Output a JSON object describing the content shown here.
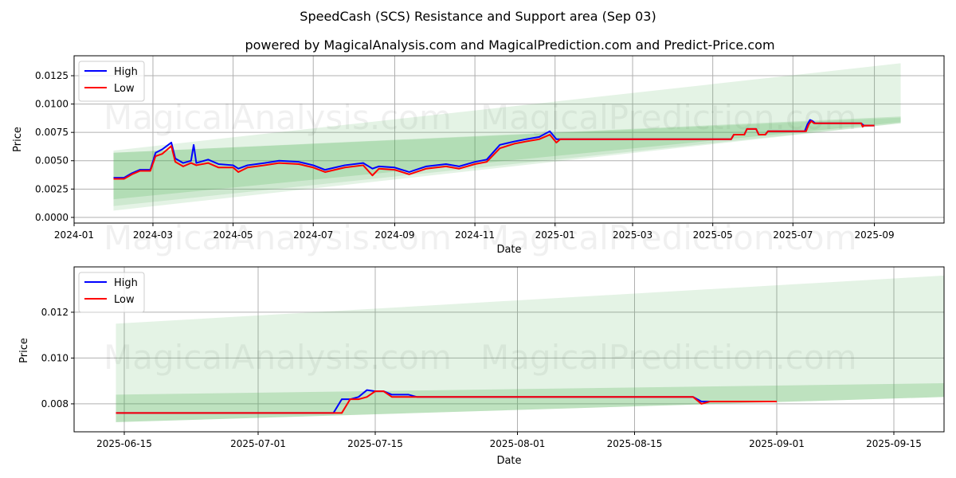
{
  "title": "SpeedCash (SCS) Resistance and Support area (Sep 03)",
  "subtitle": "powered by MagicalAnalysis.com and MagicalPrediction.com and Predict-Price.com",
  "watermarks": [
    "MagicalAnalysis.com",
    "MagicalPrediction.com"
  ],
  "colors": {
    "high": "#0000ff",
    "low": "#ff0000",
    "band": "#4caf50"
  },
  "chart_data": [
    {
      "type": "line",
      "xlabel": "Date",
      "ylabel": "Price",
      "xlim": [
        "2024-01-01",
        "2025-10-24"
      ],
      "ylim": [
        -0.0005,
        0.01426
      ],
      "xticks": [
        "2024-01",
        "2024-03",
        "2024-05",
        "2024-07",
        "2024-09",
        "2024-11",
        "2025-01",
        "2025-03",
        "2025-05",
        "2025-07",
        "2025-09"
      ],
      "yticks": [
        0,
        0.0025,
        0.005,
        0.0075,
        0.01,
        0.0125
      ],
      "ytick_labels": [
        "0.0000",
        "0.0025",
        "0.0050",
        "0.0075",
        "0.0100",
        "0.0125"
      ],
      "legend": {
        "position": "top-left",
        "entries": [
          "High",
          "Low"
        ]
      },
      "grid": true,
      "bands": [
        {
          "x": [
            "2024-01-31",
            "2025-09-21"
          ],
          "upper": [
            0.0059,
            0.0136
          ],
          "lower": [
            0.0006,
            0.0083
          ],
          "opacity": 0.15
        },
        {
          "x": [
            "2024-01-31",
            "2025-09-21"
          ],
          "upper": [
            0.0057,
            0.0089
          ],
          "lower": [
            0.0016,
            0.0084
          ],
          "opacity": 0.2
        },
        {
          "x": [
            "2024-01-31",
            "2025-09-21"
          ],
          "upper": [
            0.0057,
            0.0088
          ],
          "lower": [
            0.001,
            0.0083
          ],
          "opacity": 0.15
        }
      ],
      "series": [
        {
          "name": "High",
          "points": [
            [
              "2024-01-31",
              0.0035
            ],
            [
              "2024-02-08",
              0.0035
            ],
            [
              "2024-02-14",
              0.0039
            ],
            [
              "2024-02-20",
              0.0042
            ],
            [
              "2024-02-28",
              0.0042
            ],
            [
              "2024-03-03",
              0.0057
            ],
            [
              "2024-03-08",
              0.006
            ],
            [
              "2024-03-15",
              0.0066
            ],
            [
              "2024-03-18",
              0.0052
            ],
            [
              "2024-03-24",
              0.0048
            ],
            [
              "2024-03-30",
              0.005
            ],
            [
              "2024-04-01",
              0.0064
            ],
            [
              "2024-04-03",
              0.0048
            ],
            [
              "2024-04-12",
              0.0051
            ],
            [
              "2024-04-20",
              0.0047
            ],
            [
              "2024-05-01",
              0.0046
            ],
            [
              "2024-05-05",
              0.0043
            ],
            [
              "2024-05-12",
              0.0046
            ],
            [
              "2024-05-25",
              0.0048
            ],
            [
              "2024-06-05",
              0.005
            ],
            [
              "2024-06-20",
              0.0049
            ],
            [
              "2024-07-01",
              0.0046
            ],
            [
              "2024-07-10",
              0.0042
            ],
            [
              "2024-07-25",
              0.0046
            ],
            [
              "2024-08-08",
              0.0048
            ],
            [
              "2024-08-15",
              0.0043
            ],
            [
              "2024-08-20",
              0.0045
            ],
            [
              "2024-09-01",
              0.0044
            ],
            [
              "2024-09-12",
              0.004
            ],
            [
              "2024-09-25",
              0.0045
            ],
            [
              "2024-10-10",
              0.0047
            ],
            [
              "2024-10-20",
              0.0045
            ],
            [
              "2024-11-01",
              0.0049
            ],
            [
              "2024-11-10",
              0.0051
            ],
            [
              "2024-11-20",
              0.0064
            ],
            [
              "2024-12-01",
              0.0067
            ],
            [
              "2024-12-10",
              0.0069
            ],
            [
              "2024-12-20",
              0.0071
            ],
            [
              "2024-12-28",
              0.0076
            ],
            [
              "2025-01-02",
              0.0069
            ],
            [
              "2025-01-05",
              0.0069
            ],
            [
              "2025-05-15",
              0.0069
            ],
            [
              "2025-05-17",
              0.0073
            ],
            [
              "2025-05-25",
              0.0073
            ],
            [
              "2025-05-27",
              0.0078
            ],
            [
              "2025-06-03",
              0.0078
            ],
            [
              "2025-06-05",
              0.0073
            ],
            [
              "2025-06-10",
              0.0073
            ],
            [
              "2025-06-12",
              0.0076
            ],
            [
              "2025-07-10",
              0.0076
            ],
            [
              "2025-07-12",
              0.0082
            ],
            [
              "2025-07-14",
              0.0086
            ],
            [
              "2025-07-16",
              0.0085
            ],
            [
              "2025-07-18",
              0.0083
            ],
            [
              "2025-08-22",
              0.0083
            ],
            [
              "2025-08-24",
              0.0081
            ],
            [
              "2025-09-01",
              0.0081
            ]
          ]
        },
        {
          "name": "Low",
          "points": [
            [
              "2024-01-31",
              0.0034
            ],
            [
              "2024-02-08",
              0.0034
            ],
            [
              "2024-02-14",
              0.0038
            ],
            [
              "2024-02-20",
              0.0041
            ],
            [
              "2024-02-28",
              0.0041
            ],
            [
              "2024-03-03",
              0.0054
            ],
            [
              "2024-03-08",
              0.0056
            ],
            [
              "2024-03-15",
              0.0063
            ],
            [
              "2024-03-18",
              0.0049
            ],
            [
              "2024-03-24",
              0.0045
            ],
            [
              "2024-03-30",
              0.0048
            ],
            [
              "2024-04-03",
              0.0046
            ],
            [
              "2024-04-12",
              0.0048
            ],
            [
              "2024-04-20",
              0.0044
            ],
            [
              "2024-05-01",
              0.0044
            ],
            [
              "2024-05-05",
              0.004
            ],
            [
              "2024-05-12",
              0.0044
            ],
            [
              "2024-05-25",
              0.0046
            ],
            [
              "2024-06-05",
              0.0048
            ],
            [
              "2024-06-20",
              0.0047
            ],
            [
              "2024-07-01",
              0.0044
            ],
            [
              "2024-07-10",
              0.004
            ],
            [
              "2024-07-25",
              0.0044
            ],
            [
              "2024-08-08",
              0.0046
            ],
            [
              "2024-08-15",
              0.0037
            ],
            [
              "2024-08-20",
              0.0043
            ],
            [
              "2024-09-01",
              0.0042
            ],
            [
              "2024-09-12",
              0.0038
            ],
            [
              "2024-09-25",
              0.0043
            ],
            [
              "2024-10-10",
              0.0045
            ],
            [
              "2024-10-20",
              0.0043
            ],
            [
              "2024-11-01",
              0.0047
            ],
            [
              "2024-11-10",
              0.0049
            ],
            [
              "2024-11-20",
              0.0061
            ],
            [
              "2024-12-01",
              0.0065
            ],
            [
              "2024-12-10",
              0.0067
            ],
            [
              "2024-12-20",
              0.0069
            ],
            [
              "2024-12-28",
              0.0073
            ],
            [
              "2025-01-02",
              0.0066
            ],
            [
              "2025-01-05",
              0.0069
            ],
            [
              "2025-05-15",
              0.0069
            ],
            [
              "2025-05-17",
              0.0073
            ],
            [
              "2025-05-25",
              0.0073
            ],
            [
              "2025-05-27",
              0.0078
            ],
            [
              "2025-06-03",
              0.0078
            ],
            [
              "2025-06-05",
              0.0073
            ],
            [
              "2025-06-10",
              0.0073
            ],
            [
              "2025-06-12",
              0.0076
            ],
            [
              "2025-07-11",
              0.0076
            ],
            [
              "2025-07-13",
              0.0082
            ],
            [
              "2025-07-15",
              0.0085
            ],
            [
              "2025-07-17",
              0.0083
            ],
            [
              "2025-08-22",
              0.0083
            ],
            [
              "2025-08-23",
              0.008
            ],
            [
              "2025-08-24",
              0.0081
            ],
            [
              "2025-09-01",
              0.0081
            ]
          ]
        }
      ]
    },
    {
      "type": "line",
      "xlabel": "Date",
      "ylabel": "Price",
      "xlim": [
        "2025-06-09",
        "2025-09-21"
      ],
      "ylim": [
        0.00678,
        0.01398
      ],
      "xticks": [
        "2025-06-15",
        "2025-07-01",
        "2025-07-15",
        "2025-08-01",
        "2025-08-15",
        "2025-09-01",
        "2025-09-15"
      ],
      "yticks": [
        0.008,
        0.01,
        0.012
      ],
      "ytick_labels": [
        "0.008",
        "0.010",
        "0.012"
      ],
      "legend": {
        "position": "top-left",
        "entries": [
          "High",
          "Low"
        ]
      },
      "grid": true,
      "bands": [
        {
          "x": [
            "2025-06-14",
            "2025-09-21"
          ],
          "upper": [
            0.0115,
            0.0136
          ],
          "lower": [
            0.0072,
            0.0083
          ],
          "opacity": 0.15
        },
        {
          "x": [
            "2025-06-14",
            "2025-09-21"
          ],
          "upper": [
            0.0084,
            0.0089
          ],
          "lower": [
            0.0072,
            0.0083
          ],
          "opacity": 0.25
        }
      ],
      "series": [
        {
          "name": "High",
          "points": [
            [
              "2025-06-14",
              0.0076
            ],
            [
              "2025-07-10",
              0.0076
            ],
            [
              "2025-07-11",
              0.0082
            ],
            [
              "2025-07-12",
              0.0082
            ],
            [
              "2025-07-13",
              0.0083
            ],
            [
              "2025-07-14",
              0.0086
            ],
            [
              "2025-07-15",
              0.00855
            ],
            [
              "2025-07-16",
              0.00855
            ],
            [
              "2025-07-17",
              0.0084
            ],
            [
              "2025-07-19",
              0.0084
            ],
            [
              "2025-07-20",
              0.0083
            ],
            [
              "2025-08-22",
              0.0083
            ],
            [
              "2025-08-23",
              0.0081
            ],
            [
              "2025-09-01",
              0.0081
            ]
          ]
        },
        {
          "name": "Low",
          "points": [
            [
              "2025-06-14",
              0.0076
            ],
            [
              "2025-07-11",
              0.0076
            ],
            [
              "2025-07-12",
              0.0082
            ],
            [
              "2025-07-13",
              0.0082
            ],
            [
              "2025-07-14",
              0.0083
            ],
            [
              "2025-07-15",
              0.00855
            ],
            [
              "2025-07-16",
              0.00855
            ],
            [
              "2025-07-17",
              0.0083
            ],
            [
              "2025-07-19",
              0.0083
            ],
            [
              "2025-08-22",
              0.0083
            ],
            [
              "2025-08-23",
              0.008
            ],
            [
              "2025-08-24",
              0.0081
            ],
            [
              "2025-09-01",
              0.0081
            ]
          ]
        }
      ]
    }
  ]
}
